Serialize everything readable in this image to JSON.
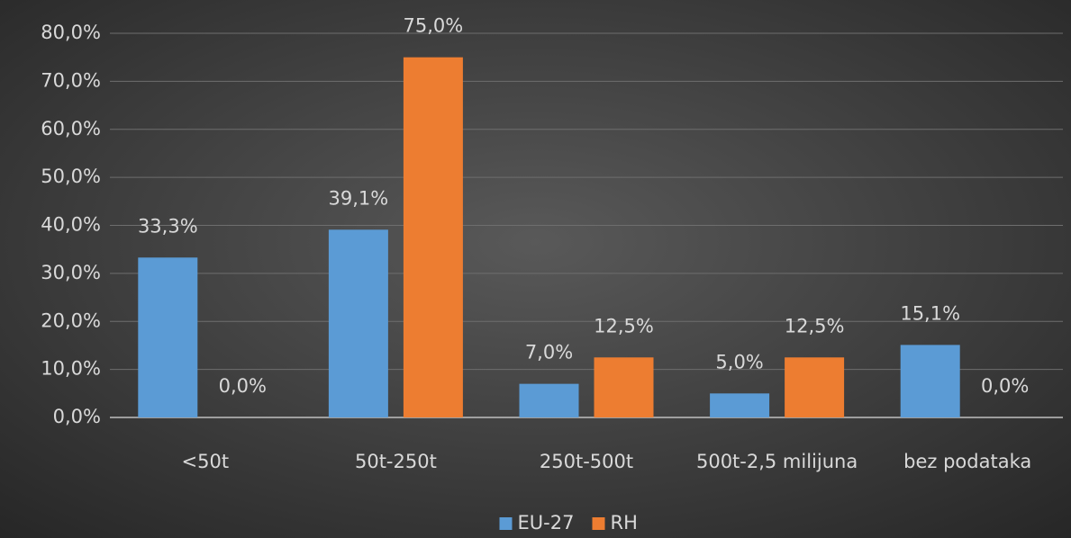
{
  "chart_data": {
    "type": "bar",
    "categories": [
      "<50t",
      "50t-250t",
      "250t-500t",
      "500t-2,5 milijuna",
      "bez podataka"
    ],
    "series": [
      {
        "name": "EU-27",
        "color": "#5b9bd5",
        "values": [
          33.3,
          39.1,
          7.0,
          5.0,
          15.1
        ],
        "value_labels": [
          "33,3%",
          "39,1%",
          "7,0%",
          "5,0%",
          "15,1%"
        ]
      },
      {
        "name": "RH",
        "color": "#ed7d31",
        "values": [
          0.0,
          75.0,
          12.5,
          12.5,
          0.0
        ],
        "value_labels": [
          "0,0%",
          "75,0%",
          "12,5%",
          "12,5%",
          "0,0%"
        ]
      }
    ],
    "ylim": [
      0,
      80
    ],
    "yticks": [
      {
        "value": 0,
        "label": "0,0%"
      },
      {
        "value": 10,
        "label": "10,0%"
      },
      {
        "value": 20,
        "label": "20,0%"
      },
      {
        "value": 30,
        "label": "30,0%"
      },
      {
        "value": 40,
        "label": "40,0%"
      },
      {
        "value": 50,
        "label": "50,0%"
      },
      {
        "value": 60,
        "label": "60,0%"
      },
      {
        "value": 70,
        "label": "70,0%"
      },
      {
        "value": 80,
        "label": "80,0%"
      }
    ],
    "grid": true,
    "legend": "bottom"
  }
}
